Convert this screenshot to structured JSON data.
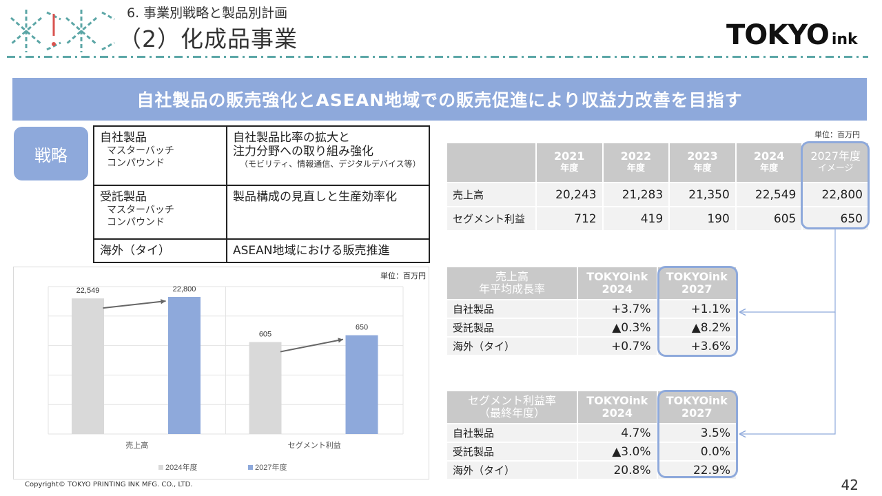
{
  "header": {
    "subtitle": "6. 事業別戦略と製品別計画",
    "title": "（2）化成品事業",
    "brand_main": "TOKYO",
    "brand_ink": "ink"
  },
  "banner": "自社製品の販売強化とASEAN地域での販売促進により収益力改善を目指す",
  "strategy": {
    "badge": "戦略",
    "rows": [
      {
        "left_title": "自社製品",
        "left_sub": [
          "マスターバッチ",
          "コンパウンド"
        ],
        "right": [
          "自社製品比率の拡大と",
          "注力分野への取り組み強化"
        ],
        "note": "（モビリティ、情報通信、デジタルデバイス等）"
      },
      {
        "left_title": "受託製品",
        "left_sub": [
          "マスターバッチ",
          "コンパウンド"
        ],
        "right": [
          "製品構成の見直しと生産効率化"
        ],
        "note": ""
      },
      {
        "left_title": "海外（タイ）",
        "left_sub": [],
        "right": [
          "ASEAN地域における販売推進"
        ],
        "note": ""
      }
    ]
  },
  "chart_data": {
    "type": "bar",
    "unit": "単位：百万円",
    "categories": [
      "売上高",
      "セグメント利益"
    ],
    "series": [
      {
        "name": "2024年度",
        "values": [
          22549,
          605
        ],
        "color": "#d9d9d9"
      },
      {
        "name": "2027年度",
        "values": [
          22800,
          650
        ],
        "color": "#8ea9db"
      }
    ],
    "value_labels": [
      [
        "22,549",
        "605"
      ],
      [
        "22,800",
        "650"
      ]
    ]
  },
  "sales_table": {
    "unit": "単位：百万円",
    "headers": [
      [
        "2021",
        "年度"
      ],
      [
        "2022",
        "年度"
      ],
      [
        "2023",
        "年度"
      ],
      [
        "2024",
        "年度"
      ],
      [
        "2027年度",
        "イメージ"
      ]
    ],
    "rows": [
      {
        "label": "売上高",
        "values": [
          "20,243",
          "21,283",
          "21,350",
          "22,549",
          "22,800"
        ]
      },
      {
        "label": "セグメント利益",
        "values": [
          "712",
          "419",
          "190",
          "605",
          "650"
        ]
      }
    ]
  },
  "growth_table": {
    "header_label": [
      "売上高",
      "年平均成長率"
    ],
    "headers": [
      [
        "TOKYOink",
        "2024"
      ],
      [
        "TOKYOink",
        "2027"
      ]
    ],
    "rows": [
      {
        "label": "自社製品",
        "values": [
          "+3.7%",
          "+1.1%"
        ]
      },
      {
        "label": "受託製品",
        "values": [
          "▲0.3%",
          "▲8.2%"
        ]
      },
      {
        "label": "海外（タイ）",
        "values": [
          "+0.7%",
          "+3.6%"
        ]
      }
    ]
  },
  "margin_table": {
    "header_label": [
      "セグメント利益率",
      "（最終年度）"
    ],
    "headers": [
      [
        "TOKYOink",
        "2024"
      ],
      [
        "TOKYOink",
        "2027"
      ]
    ],
    "rows": [
      {
        "label": "自社製品",
        "values": [
          "4.7%",
          "3.5%"
        ]
      },
      {
        "label": "受託製品",
        "values": [
          "▲3.0%",
          "0.0%"
        ]
      },
      {
        "label": "海外（タイ）",
        "values": [
          "20.8%",
          "22.9%"
        ]
      }
    ]
  },
  "footer": {
    "copyright": "Copyright© TOKYO PRINTING INK MFG. CO., LTD.",
    "page": "42"
  },
  "colors": {
    "accent": "#8ea9db",
    "gray_bar": "#d9d9d9",
    "header_gray": "#c9c9c9",
    "deco_teal": "#5ba6a6",
    "deco_red": "#d9534f"
  }
}
